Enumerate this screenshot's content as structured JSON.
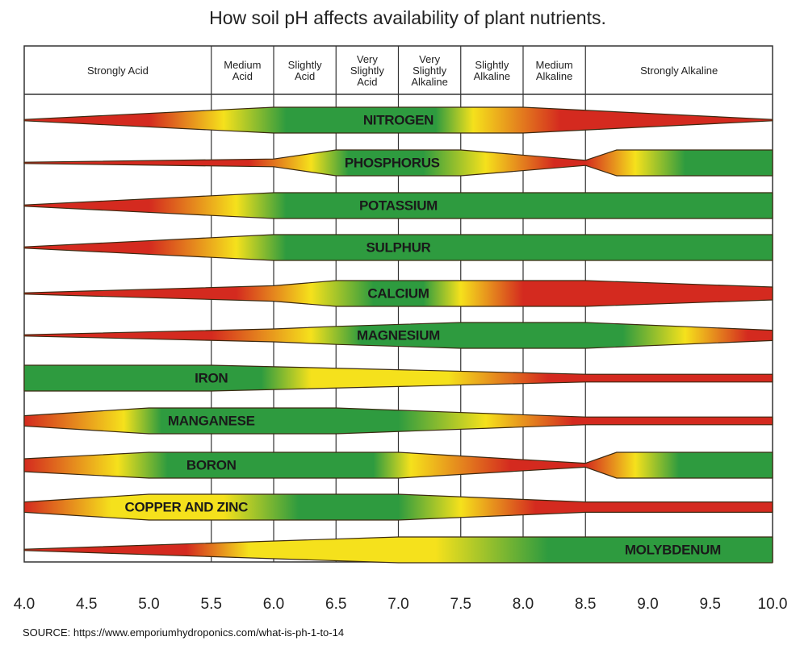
{
  "chart_data": {
    "type": "area",
    "title": "How soil pH affects availability of plant nutrients.",
    "xlabel": "",
    "ylabel": "",
    "xlim": [
      4.0,
      10.0
    ],
    "x_ticks": [
      "4.0",
      "4.5",
      "5.0",
      "5.5",
      "6.0",
      "6.5",
      "7.0",
      "7.5",
      "8.0",
      "8.5",
      "9.0",
      "9.5",
      "10.0"
    ],
    "grid": true,
    "colors": {
      "low": "#d42a1f",
      "medium": "#f5e11c",
      "high": "#2e9b3f"
    },
    "ph_ranges": [
      {
        "label": [
          "Strongly Acid"
        ],
        "from": 4.0,
        "to": 5.5
      },
      {
        "label": [
          "Medium",
          "Acid"
        ],
        "from": 5.5,
        "to": 6.0
      },
      {
        "label": [
          "Slightly",
          "Acid"
        ],
        "from": 6.0,
        "to": 6.5
      },
      {
        "label": [
          "Very",
          "Slightly",
          "Acid"
        ],
        "from": 6.5,
        "to": 7.0
      },
      {
        "label": [
          "Very",
          "Slightly",
          "Alkaline"
        ],
        "from": 7.0,
        "to": 7.5
      },
      {
        "label": [
          "Slightly",
          "Alkaline"
        ],
        "from": 7.5,
        "to": 8.0
      },
      {
        "label": [
          "Medium",
          "Alkaline"
        ],
        "from": 8.0,
        "to": 8.5
      },
      {
        "label": [
          "Strongly Alkaline"
        ],
        "from": 8.5,
        "to": 10.0
      }
    ],
    "series": [
      {
        "name": "NITROGEN",
        "availability": [
          [
            4.0,
            0
          ],
          [
            6.0,
            1
          ],
          [
            8.0,
            1
          ],
          [
            10.0,
            0
          ]
        ],
        "color_stops": [
          [
            4.0,
            "low"
          ],
          [
            5.0,
            "low"
          ],
          [
            5.6,
            "medium"
          ],
          [
            6.1,
            "high"
          ],
          [
            7.3,
            "high"
          ],
          [
            7.6,
            "medium"
          ],
          [
            8.3,
            "low"
          ],
          [
            10.0,
            "low"
          ]
        ]
      },
      {
        "name": "PHOSPHORUS",
        "availability": [
          [
            4.0,
            0
          ],
          [
            6.0,
            0.3
          ],
          [
            6.5,
            1
          ],
          [
            7.5,
            1
          ],
          [
            8.5,
            0.2
          ],
          [
            8.75,
            1
          ],
          [
            10.0,
            1
          ]
        ],
        "color_stops": [
          [
            4.0,
            "low"
          ],
          [
            5.8,
            "low"
          ],
          [
            6.3,
            "medium"
          ],
          [
            6.6,
            "high"
          ],
          [
            7.2,
            "high"
          ],
          [
            7.7,
            "medium"
          ],
          [
            8.25,
            "low"
          ],
          [
            8.5,
            "low"
          ],
          [
            8.9,
            "medium"
          ],
          [
            9.3,
            "high"
          ],
          [
            10.0,
            "high"
          ]
        ]
      },
      {
        "name": "POTASSIUM",
        "availability": [
          [
            4.0,
            0
          ],
          [
            6.0,
            1
          ],
          [
            10.0,
            1
          ]
        ],
        "color_stops": [
          [
            4.0,
            "low"
          ],
          [
            5.0,
            "low"
          ],
          [
            5.7,
            "medium"
          ],
          [
            6.1,
            "high"
          ],
          [
            10.0,
            "high"
          ]
        ]
      },
      {
        "name": "SULPHUR",
        "availability": [
          [
            4.0,
            0
          ],
          [
            6.0,
            1
          ],
          [
            10.0,
            1
          ]
        ],
        "color_stops": [
          [
            4.0,
            "low"
          ],
          [
            5.0,
            "low"
          ],
          [
            5.7,
            "medium"
          ],
          [
            6.1,
            "high"
          ],
          [
            10.0,
            "high"
          ]
        ]
      },
      {
        "name": "CALCIUM",
        "availability": [
          [
            4.0,
            0
          ],
          [
            6.0,
            0.6
          ],
          [
            6.5,
            1
          ],
          [
            8.5,
            1
          ],
          [
            10.0,
            0.5
          ]
        ],
        "color_stops": [
          [
            4.0,
            "low"
          ],
          [
            5.7,
            "low"
          ],
          [
            6.3,
            "medium"
          ],
          [
            6.8,
            "high"
          ],
          [
            7.2,
            "high"
          ],
          [
            7.5,
            "medium"
          ],
          [
            8.0,
            "low"
          ],
          [
            10.0,
            "low"
          ]
        ]
      },
      {
        "name": "MAGNESIUM",
        "availability": [
          [
            4.0,
            0
          ],
          [
            6.0,
            0.5
          ],
          [
            6.5,
            0.7
          ],
          [
            7.5,
            1
          ],
          [
            8.5,
            1
          ],
          [
            10.0,
            0.4
          ]
        ],
        "color_stops": [
          [
            4.0,
            "low"
          ],
          [
            5.5,
            "low"
          ],
          [
            6.3,
            "medium"
          ],
          [
            6.7,
            "high"
          ],
          [
            8.8,
            "high"
          ],
          [
            9.3,
            "medium"
          ],
          [
            9.8,
            "low"
          ],
          [
            10.0,
            "low"
          ]
        ]
      },
      {
        "name": "IRON",
        "availability": [
          [
            4.0,
            1
          ],
          [
            5.5,
            1
          ],
          [
            8.5,
            0.3
          ],
          [
            10.0,
            0.3
          ]
        ],
        "color_stops": [
          [
            4.0,
            "high"
          ],
          [
            5.9,
            "high"
          ],
          [
            6.3,
            "medium"
          ],
          [
            7.4,
            "medium"
          ],
          [
            8.2,
            "low"
          ],
          [
            10.0,
            "low"
          ]
        ]
      },
      {
        "name": "MANGANESE",
        "availability": [
          [
            4.0,
            0.4
          ],
          [
            5.0,
            1
          ],
          [
            6.5,
            1
          ],
          [
            8.5,
            0.3
          ],
          [
            10.0,
            0.3
          ]
        ],
        "color_stops": [
          [
            4.0,
            "low"
          ],
          [
            4.8,
            "medium"
          ],
          [
            5.1,
            "high"
          ],
          [
            7.0,
            "high"
          ],
          [
            7.7,
            "medium"
          ],
          [
            8.4,
            "low"
          ],
          [
            10.0,
            "low"
          ]
        ]
      },
      {
        "name": "BORON",
        "availability": [
          [
            4.0,
            0.5
          ],
          [
            5.0,
            1
          ],
          [
            7.0,
            1
          ],
          [
            8.5,
            0.15
          ],
          [
            8.75,
            1
          ],
          [
            10.0,
            1
          ]
        ],
        "color_stops": [
          [
            4.0,
            "low"
          ],
          [
            4.75,
            "medium"
          ],
          [
            5.15,
            "high"
          ],
          [
            6.8,
            "high"
          ],
          [
            7.1,
            "medium"
          ],
          [
            7.9,
            "low"
          ],
          [
            8.5,
            "low"
          ],
          [
            8.9,
            "medium"
          ],
          [
            9.25,
            "high"
          ],
          [
            10.0,
            "high"
          ]
        ]
      },
      {
        "name": "COPPER AND ZINC",
        "availability": [
          [
            4.0,
            0.4
          ],
          [
            5.0,
            1
          ],
          [
            7.0,
            1
          ],
          [
            8.5,
            0.4
          ],
          [
            10.0,
            0.4
          ]
        ],
        "color_stops": [
          [
            4.0,
            "low"
          ],
          [
            4.7,
            "medium"
          ],
          [
            5.6,
            "medium"
          ],
          [
            6.2,
            "high"
          ],
          [
            7.0,
            "high"
          ],
          [
            7.5,
            "medium"
          ],
          [
            8.1,
            "low"
          ],
          [
            10.0,
            "low"
          ]
        ]
      },
      {
        "name": "MOLYBDENUM",
        "availability": [
          [
            4.0,
            0
          ],
          [
            7.0,
            1
          ],
          [
            10.0,
            1
          ]
        ],
        "color_stops": [
          [
            4.0,
            "low"
          ],
          [
            5.3,
            "low"
          ],
          [
            5.8,
            "medium"
          ],
          [
            7.3,
            "medium"
          ],
          [
            8.2,
            "high"
          ],
          [
            10.0,
            "high"
          ]
        ]
      }
    ]
  },
  "source": "SOURCE: https://www.emporiumhydroponics.com/what-is-ph-1-to-14"
}
